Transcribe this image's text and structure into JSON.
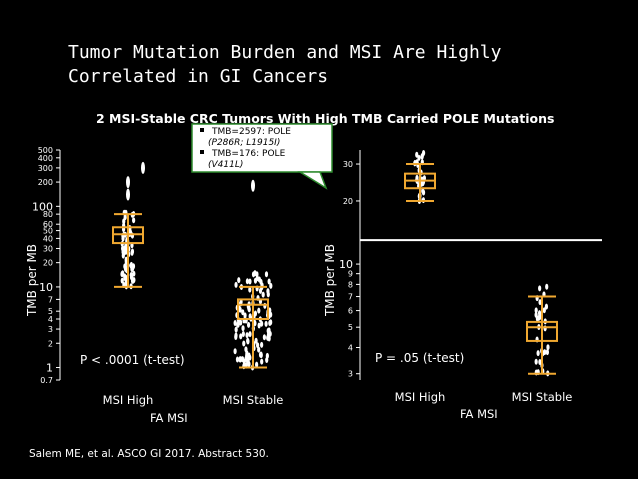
{
  "slide": {
    "title_line1": "Tumor Mutation Burden and MSI Are Highly",
    "title_line2": "Correlated in GI Cancers",
    "subtitle": "2 MSI-Stable CRC Tumors With High TMB Carried POLE Mutations",
    "callout_line1": "TMB=2597: POLE",
    "callout_line2": "(P286R; L1915I)",
    "callout_line3": "TMB=176: POLE",
    "callout_line4": "(V411L)",
    "citation": "Salem ME, et al. ASCO GI 2017. Abstract 530.",
    "colors": {
      "background": "#000000",
      "text": "#ffffff",
      "box": "#f0a830",
      "points": "#ffffff",
      "callout_border": "#2e8b2e"
    }
  },
  "chart_data": [
    {
      "type": "box",
      "ylabel": "TMB per MB",
      "xlabel": "FA MSI",
      "yscale": "log",
      "ylim": [
        0.7,
        500
      ],
      "ytick_labels": [
        "0.7",
        "1",
        "2",
        "3",
        "4",
        "5",
        "7",
        "10",
        "20",
        "30",
        "40",
        "50",
        "60",
        "80",
        "100",
        "200",
        "300",
        "400",
        "500"
      ],
      "categories": [
        "MSI High",
        "MSI Stable"
      ],
      "annotation": "P < .0001 (t-test)",
      "boxes": [
        {
          "category": "MSI High",
          "whisker_low": 10,
          "q1": 35,
          "median": 45,
          "q3": 55,
          "whisker_high": 80
        },
        {
          "category": "MSI Stable",
          "whisker_low": 1,
          "q1": 4,
          "median": 6,
          "q3": 7,
          "whisker_high": 10
        }
      ]
    },
    {
      "type": "box",
      "ylabel": "TMB per MB",
      "xlabel": "FA MSI",
      "yscale": "log",
      "ylim": [
        2.8,
        35
      ],
      "ytick_labels": [
        "3",
        "4",
        "5",
        "6",
        "7",
        "8",
        "9",
        "10",
        "20",
        "30"
      ],
      "categories": [
        "MSI High",
        "MSI Stable"
      ],
      "annotation": "P = .05 (t-test)",
      "boxes": [
        {
          "category": "MSI High",
          "whisker_low": 20,
          "q1": 23,
          "median": 25,
          "q3": 27,
          "whisker_high": 30
        },
        {
          "category": "MSI Stable",
          "whisker_low": 3,
          "q1": 4.3,
          "median": 5,
          "q3": 5.3,
          "whisker_high": 7
        }
      ]
    }
  ]
}
